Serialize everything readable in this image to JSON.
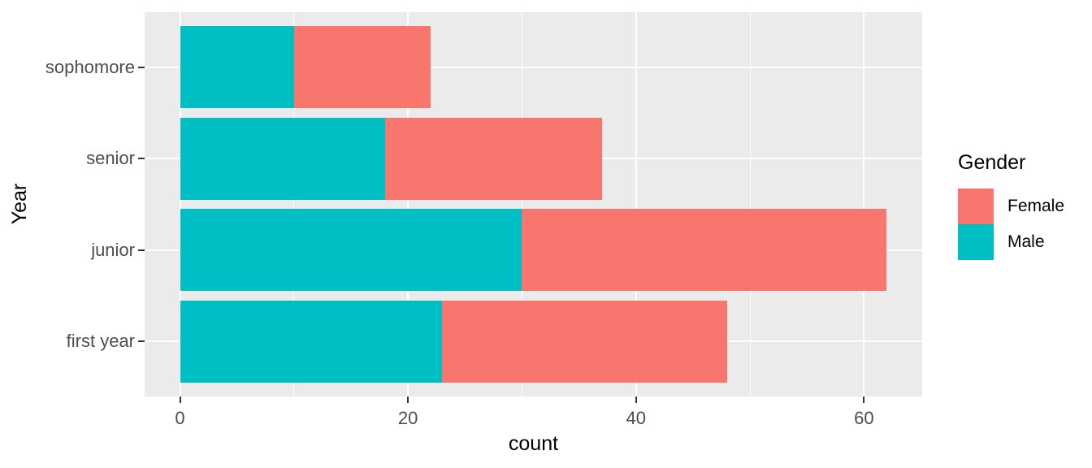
{
  "chart_data": {
    "type": "bar",
    "orientation": "horizontal",
    "stacked": true,
    "title": "",
    "xlabel": "count",
    "ylabel": "Year",
    "categories": [
      "sophomore",
      "senior",
      "junior",
      "first year"
    ],
    "series": [
      {
        "name": "Male",
        "color": "#00BFC4",
        "values": [
          10,
          18,
          30,
          23
        ]
      },
      {
        "name": "Female",
        "color": "#F8766D",
        "values": [
          12,
          19,
          32,
          25
        ]
      }
    ],
    "totals": [
      22,
      37,
      62,
      48
    ],
    "x_ticks": [
      0,
      20,
      40,
      60
    ],
    "x_minor_ticks": [
      10,
      30,
      50
    ],
    "xlim": [
      -3.1,
      65.1
    ],
    "grid": true,
    "legend": {
      "title": "Gender",
      "position": "right",
      "entries": [
        {
          "label": "Female",
          "color": "#F8766D"
        },
        {
          "label": "Male",
          "color": "#00BFC4"
        }
      ]
    },
    "colors": {
      "panel_bg": "#EBEBEB",
      "grid": "#FFFFFF",
      "tick_label": "#4D4D4D",
      "axis_title": "#000000",
      "tick_mark": "#333333",
      "background": "#FFFFFF"
    }
  }
}
